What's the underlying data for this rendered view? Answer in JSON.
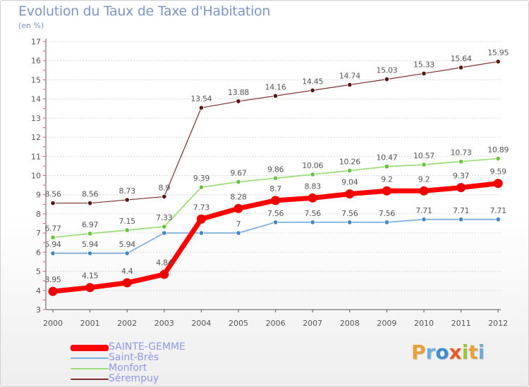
{
  "colors": {
    "title": "#7d95c6",
    "axis": "#555555",
    "grid": "#d9d9d9",
    "tick_red": "#e05050",
    "legend_text": "#8f96e8",
    "label_text": "#555555"
  },
  "logo": {
    "text": "Proxiti",
    "letter_colors": [
      "#e8a13a",
      "#6aaee0",
      "#3f8fd0",
      "#e85c2a",
      "#9bc640",
      "#e8a13a",
      "#6aaee0"
    ]
  },
  "chart_data": {
    "type": "line",
    "title": "Evolution du Taux de Taxe d'Habitation",
    "subtitle": "(en %)",
    "xlabel": "",
    "ylabel": "",
    "x": [
      "2000",
      "2001",
      "2002",
      "2003",
      "2004",
      "2005",
      "2006",
      "2007",
      "2008",
      "2009",
      "2010",
      "2011",
      "2012"
    ],
    "ylim": [
      3,
      17
    ],
    "yticks": [
      "3",
      "4",
      "5",
      "6",
      "7",
      "8",
      "9",
      "10",
      "11",
      "12",
      "13",
      "14",
      "15",
      "16",
      "17"
    ],
    "grid": "horizontal",
    "legend_position": "bottom-left",
    "series": [
      {
        "name": "Sérempuy",
        "color": "#7a2e2e",
        "dot_color": "#5a1515",
        "width": 1.2,
        "values": [
          8.56,
          8.56,
          8.73,
          8.9,
          13.54,
          13.88,
          14.16,
          14.45,
          14.74,
          15.03,
          15.33,
          15.64,
          15.95
        ],
        "labels": [
          "8.56",
          "8.56",
          "8.73",
          "8.9",
          "13.54",
          "13.88",
          "14.16",
          "14.45",
          "14.74",
          "15.03",
          "15.33",
          "15.64",
          "15.95"
        ]
      },
      {
        "name": "Monfort",
        "color": "#9cdf7a",
        "dot_color": "#66c23a",
        "width": 1.8,
        "values": [
          6.77,
          6.97,
          7.15,
          7.33,
          9.39,
          9.67,
          9.86,
          10.06,
          10.26,
          10.47,
          10.57,
          10.73,
          10.89
        ],
        "labels": [
          "6.77",
          "6.97",
          "7.15",
          "7.33",
          "9.39",
          "9.67",
          "9.86",
          "10.06",
          "10.26",
          "10.47",
          "10.57",
          "10.73",
          "10.89"
        ]
      },
      {
        "name": "Saint-Brès",
        "color": "#7eb0de",
        "dot_color": "#3d86c8",
        "width": 1.8,
        "values": [
          5.94,
          5.94,
          5.94,
          7.0,
          7.0,
          7.0,
          7.56,
          7.56,
          7.56,
          7.56,
          7.71,
          7.71,
          7.71
        ],
        "labels": [
          "5.94",
          "5.94",
          "5.94",
          "",
          "",
          "7",
          "7.56",
          "7.56",
          "7.56",
          "7.56",
          "7.71",
          "7.71",
          "7.71"
        ]
      },
      {
        "name": "SAINTE-GEMME",
        "color": "#ff0000",
        "dot_color": "#ee0000",
        "width": 7,
        "values": [
          3.95,
          4.15,
          4.4,
          4.84,
          7.73,
          8.28,
          8.7,
          8.83,
          9.04,
          9.2,
          9.2,
          9.37,
          9.59
        ],
        "labels": [
          "3.95",
          "4.15",
          "4.4",
          "4.84",
          "7.73",
          "8.28",
          "8.7",
          "8.83",
          "9.04",
          "9.2",
          "9.2",
          "9.37",
          "9.59"
        ]
      }
    ],
    "legend_order": [
      "SAINTE-GEMME",
      "Saint-Brès",
      "Monfort",
      "Sérempuy"
    ]
  }
}
